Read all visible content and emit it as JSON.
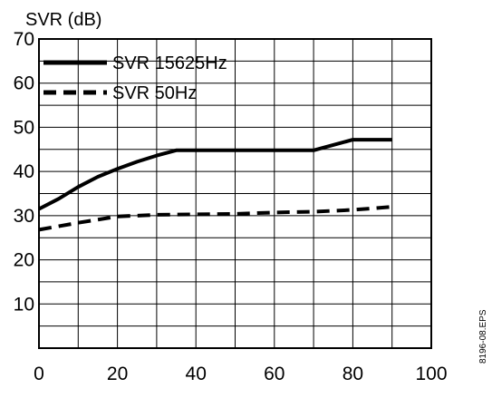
{
  "chart_data": {
    "type": "line",
    "title": "",
    "xlabel": "",
    "ylabel": "SVR (dB)",
    "xlim": [
      0,
      100
    ],
    "ylim": [
      0,
      70
    ],
    "xticks": [
      "0",
      "20",
      "40",
      "60",
      "80",
      "100"
    ],
    "yticks": [
      "10",
      "20",
      "30",
      "40",
      "50",
      "60",
      "70"
    ],
    "grid": "on",
    "legend_position": "top-left",
    "series": [
      {
        "name": "SVR 15625Hz",
        "style": "solid",
        "x": [
          0,
          5,
          10,
          15,
          20,
          25,
          30,
          35,
          40,
          50,
          60,
          70,
          80,
          90
        ],
        "y": [
          31.5,
          33.8,
          36.5,
          38.8,
          40.6,
          42.2,
          43.6,
          44.8,
          44.8,
          44.8,
          44.8,
          44.8,
          47.2,
          47.2
        ]
      },
      {
        "name": "SVR 50Hz",
        "style": "dashed",
        "x": [
          0,
          10,
          20,
          30,
          40,
          50,
          60,
          70,
          80,
          90
        ],
        "y": [
          26.8,
          28.4,
          29.8,
          30.2,
          30.3,
          30.4,
          30.7,
          30.9,
          31.3,
          32.0
        ]
      }
    ]
  },
  "side_text": "8196-08.EPS"
}
